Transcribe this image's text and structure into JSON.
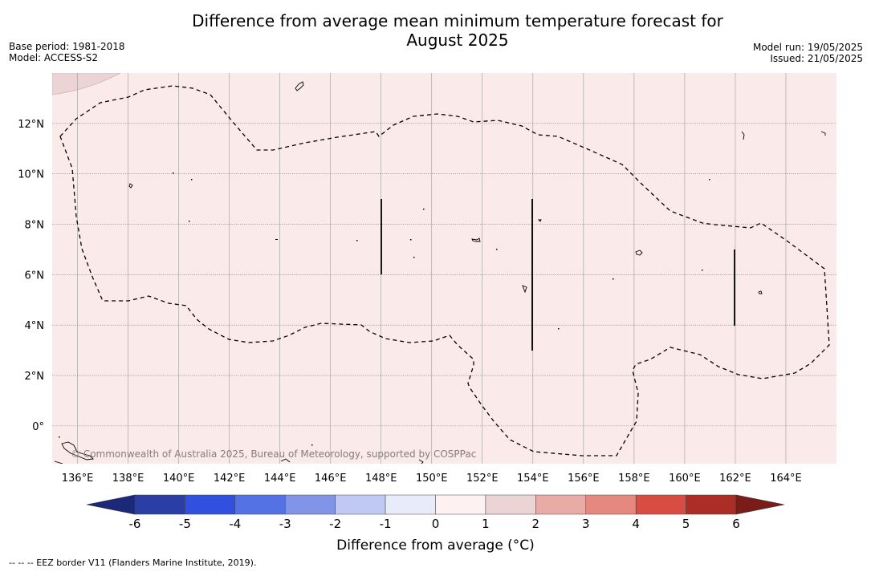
{
  "title_line1": "Difference from average mean minimum temperature forecast for",
  "title_line2": "August 2025",
  "meta_left": {
    "base_period": "Base period: 1981-2018",
    "model": "Model: ACCESS-S2"
  },
  "meta_right": {
    "model_run": "Model run: 19/05/2025",
    "issued": "Issued: 21/05/2025"
  },
  "map": {
    "lon_range": [
      135.0,
      166.0
    ],
    "lat_range": [
      -1.5,
      14.0
    ],
    "lon_ticks": [
      "136°E",
      "138°E",
      "140°E",
      "142°E",
      "144°E",
      "146°E",
      "148°E",
      "150°E",
      "152°E",
      "154°E",
      "156°E",
      "158°E",
      "160°E",
      "162°E",
      "164°E"
    ],
    "lat_ticks": [
      "0°",
      "2°N",
      "4°N",
      "6°N",
      "8°N",
      "10°N",
      "12°N"
    ],
    "background_color": "#fbeaea",
    "copyright": "© Commonwealth of Australia 2025, Bureau of Meteorology, supported by COSPPac"
  },
  "colorbar": {
    "tick_labels": [
      "-6",
      "-5",
      "-4",
      "-3",
      "-2",
      "-1",
      "0",
      "1",
      "2",
      "3",
      "4",
      "5",
      "6"
    ],
    "colors": [
      "#2a3ea6",
      "#3150e0",
      "#5572e4",
      "#8294e8",
      "#c0c8f4",
      "#e8ebfa",
      "#fdf1f1",
      "#ecd4d4",
      "#e8aba6",
      "#e58880",
      "#d94c42",
      "#ac2d25"
    ],
    "under_color": "#1c2878",
    "over_color": "#7a1c18",
    "label": "Difference from average (°C)"
  },
  "footnote": "--  --  -- EEZ border V11 (Flanders Marine Institute, 2019)."
}
